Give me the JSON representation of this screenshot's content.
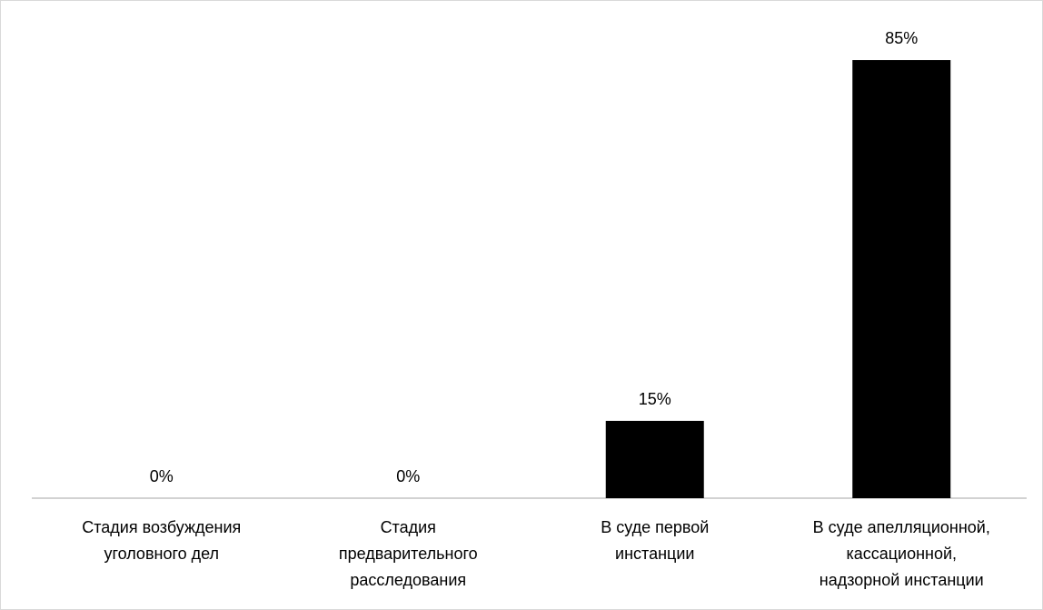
{
  "chart_data": {
    "type": "bar",
    "categories": [
      "Стадия возбуждения\nуголовного дел",
      "Стадия\nпредварительного\nрасследования",
      "В суде первой\nинстанции",
      "В суде апелляционной,\nкассационной,\nнадзорной инстанции"
    ],
    "values": [
      0,
      0,
      15,
      85
    ],
    "value_labels": [
      "0%",
      "0%",
      "15%",
      "85%"
    ],
    "color": "#000000"
  }
}
